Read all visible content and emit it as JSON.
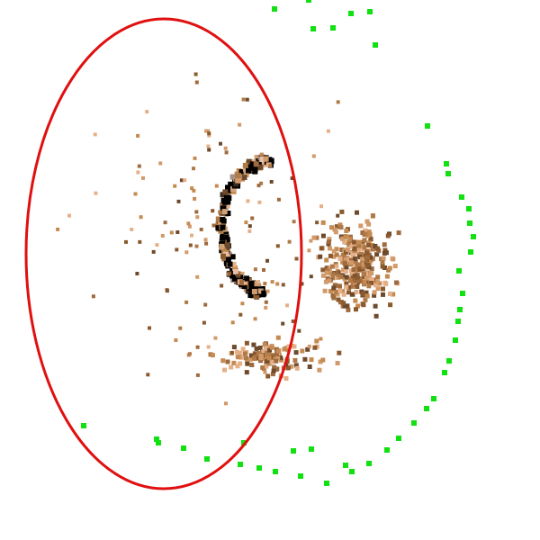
{
  "colors": {
    "background": "#ffffff",
    "ellipse": "#e01010",
    "markers": "#11e011",
    "cloud": [
      "#8a5a2e",
      "#b07a48",
      "#d29a6a",
      "#c48a52",
      "#6e4a2c",
      "#e5b088",
      "#9e6a3e",
      "#3a2a1e",
      "#000000",
      "#cfa47a",
      "#a88f86",
      "#e8c0a8"
    ]
  },
  "icons": {
    "ellipse": "selection-ellipse",
    "markers": "green-square-marker",
    "cloud": "point-cloud"
  }
}
